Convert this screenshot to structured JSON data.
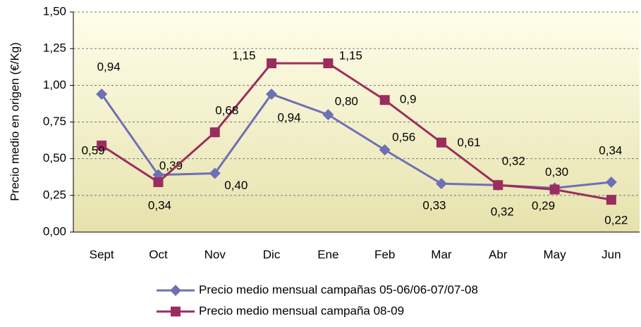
{
  "chart_data": {
    "type": "line",
    "y_label": "Precio medio en origen (€/Kg)",
    "categories": [
      "Sept",
      "Oct",
      "Nov",
      "Dic",
      "Ene",
      "Feb",
      "Mar",
      "Abr",
      "May",
      "Jun"
    ],
    "ylim": [
      0,
      1.5
    ],
    "yticks": [
      {
        "value": 0,
        "label": "0,00"
      },
      {
        "value": 0.25,
        "label": "0,25"
      },
      {
        "value": 0.5,
        "label": "0,50"
      },
      {
        "value": 0.75,
        "label": "0,75"
      },
      {
        "value": 1,
        "label": "1,00"
      },
      {
        "value": 1.25,
        "label": "1,25"
      },
      {
        "value": 1.5,
        "label": "1,50"
      }
    ],
    "grid": true,
    "series": [
      {
        "name": "Precio medio mensual campañas 05-06/06-07/07-08",
        "color": "#6f6fb5",
        "marker": "diamond",
        "values": [
          0.94,
          0.39,
          0.4,
          0.94,
          0.8,
          0.56,
          0.33,
          0.32,
          0.3,
          0.34
        ],
        "value_labels": [
          "0,94",
          "0,39",
          "0,40",
          "0,94",
          "0,80",
          "0,56",
          "0,33",
          "0,32",
          "0,30",
          "0,34"
        ]
      },
      {
        "name": "Precio medio mensual campaña 08-09",
        "color": "#9b2d5e",
        "marker": "square",
        "values": [
          0.59,
          0.34,
          0.68,
          1.15,
          1.15,
          0.9,
          0.61,
          0.32,
          0.29,
          0.22
        ],
        "value_labels": [
          "0,59",
          "0,34",
          "0,68",
          "1,15",
          "1,15",
          "0,9",
          "0,61",
          "0,32",
          "0,29",
          "0,22"
        ]
      }
    ]
  }
}
